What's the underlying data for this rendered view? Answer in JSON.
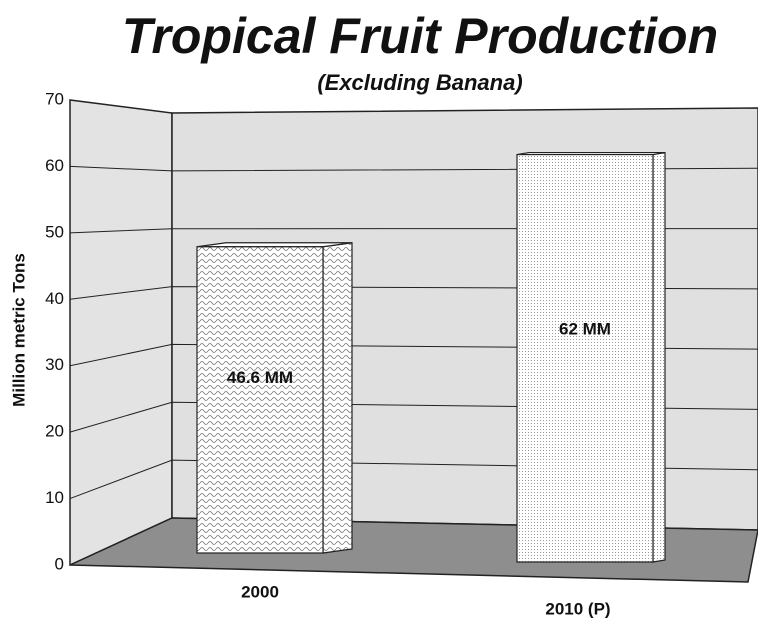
{
  "chart_data": {
    "type": "bar3d",
    "title": "Tropical Fruit Production",
    "subtitle": "(Excluding Banana)",
    "y_label": "Million metric Tons",
    "categories": [
      "2000",
      "2010 (P)"
    ],
    "values": [
      46.6,
      62
    ],
    "value_labels": [
      "46.6 MM",
      "62 MM"
    ],
    "ylim": [
      0,
      70
    ],
    "yticks": [
      0,
      10,
      20,
      30,
      40,
      50,
      60,
      70
    ],
    "grid": true
  }
}
